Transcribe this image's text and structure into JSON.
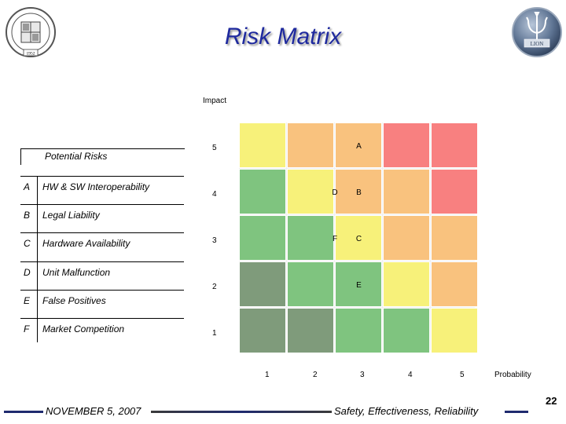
{
  "slide": {
    "title": "Risk Matrix",
    "seal_text": "SOUTHAMPTON UNIVERSITY",
    "seal_year": "1952",
    "logo_text": "LION"
  },
  "matrix": {
    "impact_label": "Impact",
    "probability_label": "Probability",
    "impact_levels": [
      "5",
      "4",
      "3",
      "2",
      "1"
    ],
    "probability_levels": [
      "1",
      "2",
      "3",
      "4",
      "5"
    ],
    "colors": {
      "dark_green": "#7f9b7b",
      "green": "#7fc47f",
      "yellow": "#f7f17a",
      "orange": "#f9c27e",
      "red": "#f88080",
      "grid_bg": "#f0f0f0"
    },
    "rows": [
      {
        "impact": "5",
        "cells": [
          "yellow",
          "orange",
          "orange",
          "red",
          "red"
        ]
      },
      {
        "impact": "4",
        "cells": [
          "green",
          "yellow",
          "orange",
          "orange",
          "red"
        ]
      },
      {
        "impact": "3",
        "cells": [
          "green",
          "green",
          "yellow",
          "orange",
          "orange"
        ]
      },
      {
        "impact": "2",
        "cells": [
          "dark_green",
          "green",
          "green",
          "yellow",
          "orange"
        ]
      },
      {
        "impact": "1",
        "cells": [
          "dark_green",
          "dark_green",
          "green",
          "green",
          "yellow"
        ]
      }
    ],
    "risk_markers": [
      {
        "label": "A",
        "impact": 5,
        "probability": 3
      },
      {
        "label": "D",
        "impact": 4,
        "probability": 2.5
      },
      {
        "label": "B",
        "impact": 4,
        "probability": 3
      },
      {
        "label": "F",
        "impact": 3,
        "probability": 2.5
      },
      {
        "label": "C",
        "impact": 3,
        "probability": 3
      },
      {
        "label": "E",
        "impact": 2,
        "probability": 3
      }
    ]
  },
  "legend": {
    "heading": "Potential Risks",
    "items": [
      {
        "code": "A",
        "name": "HW & SW Interoperability"
      },
      {
        "code": "B",
        "name": "Legal Liability"
      },
      {
        "code": "C",
        "name": "Hardware Availability"
      },
      {
        "code": "D",
        "name": "Unit Malfunction"
      },
      {
        "code": "E",
        "name": "False Positives"
      },
      {
        "code": "F",
        "name": "Market Competition"
      }
    ]
  },
  "footer": {
    "date": "NOVEMBER 5, 2007",
    "motto": "Safety, Effectiveness, Reliability",
    "page": "22"
  }
}
